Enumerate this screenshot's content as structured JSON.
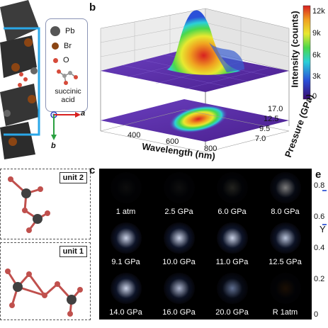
{
  "panel_labels": {
    "a_b": "b",
    "c": "c",
    "e": "e"
  },
  "legend": {
    "items": [
      {
        "label": "Pb",
        "color": "#555555"
      },
      {
        "label": "Br",
        "color": "#8b4513"
      },
      {
        "label": "O",
        "color": "#d64a3a"
      }
    ],
    "acid_label_line1": "succinic",
    "acid_label_line2": "acid"
  },
  "axes_a": {
    "a": "a",
    "b": "b"
  },
  "plot_b": {
    "z_label": "Intensity (counts)",
    "colorbar_label": "Pressure (GPa)",
    "x_label": "Wavelength (nm)",
    "x_ticks": [
      "400",
      "600",
      "800"
    ],
    "y_ticks": [
      "17.0",
      "12.5",
      "9.5",
      "7.0"
    ],
    "colorbar_ticks": [
      "12k",
      "9k",
      "6k",
      "3k",
      "0"
    ],
    "colors": [
      "#3b0a6e",
      "#2b50d8",
      "#2bd0d8",
      "#4bd84b",
      "#e8e830",
      "#f0a020",
      "#d82020"
    ]
  },
  "units": {
    "unit2": "unit 2",
    "unit1": "unit 1"
  },
  "grid_c": {
    "cells": [
      {
        "label": "1 atm",
        "glow": 0.0,
        "color": "#333333"
      },
      {
        "label": "2.5 GPa",
        "glow": 0.05,
        "color": "#3a3a3a"
      },
      {
        "label": "6.0 GPa",
        "glow": 0.25,
        "color": "#8a8a7a"
      },
      {
        "label": "8.0 GPa",
        "glow": 0.55,
        "color": "#e0e0e0"
      },
      {
        "label": "9.1 GPa",
        "glow": 0.9,
        "color": "#dfe8ff"
      },
      {
        "label": "10.0 GPa",
        "glow": 0.9,
        "color": "#dfe8ff"
      },
      {
        "label": "11.0 GPa",
        "glow": 0.9,
        "color": "#dfe8ff"
      },
      {
        "label": "12.5 GPa",
        "glow": 0.85,
        "color": "#d8e4ff"
      },
      {
        "label": "14.0 GPa",
        "glow": 0.9,
        "color": "#dfe8ff"
      },
      {
        "label": "16.0 GPa",
        "glow": 0.8,
        "color": "#d6e0ff"
      },
      {
        "label": "20.0 GPa",
        "glow": 0.6,
        "color": "#9fb8f0"
      },
      {
        "label": "R 1atm",
        "glow": 0.1,
        "color": "#6a3a10"
      }
    ]
  },
  "panel_e": {
    "y_label": "Y",
    "ticks": [
      "0.8",
      "0.6",
      "0.4",
      "0.2",
      "0"
    ]
  }
}
